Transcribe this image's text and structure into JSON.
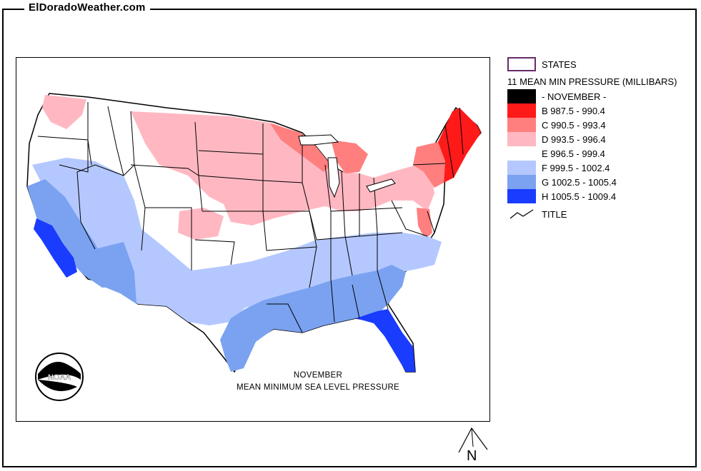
{
  "site": {
    "title": "ElDoradoWeather.com"
  },
  "legend": {
    "states_label": "STATES",
    "heading": "11 MEAN MIN PRESSURE (MILLIBARS)",
    "classes": [
      {
        "label": "- NOVEMBER -",
        "color": "#000000"
      },
      {
        "label": "B 987.5 - 990.4",
        "color": "#ff1a1a"
      },
      {
        "label": "C 990.5 - 993.4",
        "color": "#ff7f7f"
      },
      {
        "label": "D 993.5 - 996.4",
        "color": "#ffb8c2"
      },
      {
        "label": "E 996.5 - 999.4",
        "color": "#ffffff"
      },
      {
        "label": "F 999.5 - 1002.4",
        "color": "#b4c8ff"
      },
      {
        "label": "G 1002.5 - 1005.4",
        "color": "#7aa2f0"
      },
      {
        "label": "H 1005.5 - 1009.4",
        "color": "#1a3cff"
      }
    ],
    "title_label": "TITLE"
  },
  "map": {
    "caption_line1": "NOVEMBER",
    "caption_line2": "MEAN MINIMUM SEA LEVEL PRESSURE",
    "logo_text": "NOAA",
    "north_label": "N",
    "colors": {
      "red": "#ff1a1a",
      "salmon": "#ff7f7f",
      "pink": "#ffb8c2",
      "white": "#ffffff",
      "light_blue": "#b4c8ff",
      "medium_blue": "#7aa2f0",
      "blue": "#1a3cff"
    }
  }
}
